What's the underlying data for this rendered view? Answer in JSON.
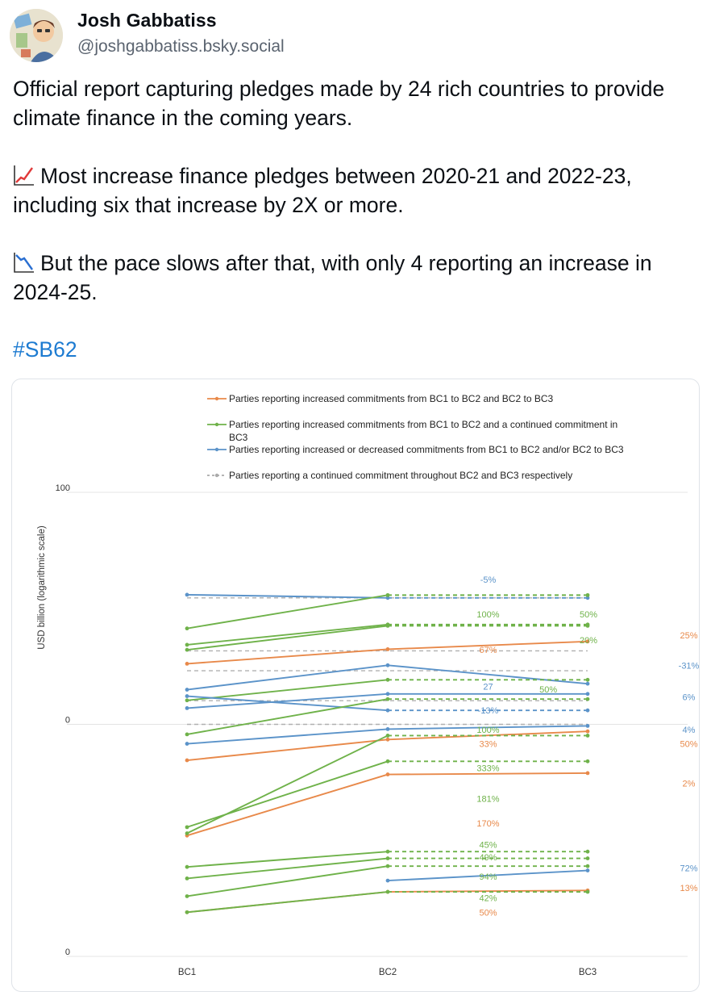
{
  "post": {
    "author_name": "Josh Gabbatiss",
    "author_handle": "@joshgabbatiss.bsky.social",
    "paragraphs": [
      "Official report capturing pledges made by 24 rich countries to provide climate finance in the coming years.",
      "Most increase finance pledges between 2020-21 and 2022-23, including six that increase by 2X or more.",
      "But the pace slows after that, with only 4 reporting an increase in 2024-25."
    ],
    "hashtag": "#SB62",
    "icons": [
      "chart-increasing-icon",
      "chart-decreasing-icon"
    ]
  },
  "chart_data": {
    "type": "line",
    "title": "",
    "ylabel": "USD billion (logarithmic scale)",
    "xlabel": "",
    "categories": [
      "BC1",
      "BC2",
      "BC3"
    ],
    "y_tick_labels": [
      "100",
      "0",
      "0"
    ],
    "yscale": "log",
    "ylim": [
      0.01,
      100
    ],
    "legend": [
      {
        "text": "Parties reporting increased commitments from BC1 to BC2 and BC2 to BC3",
        "color": "#e8894a",
        "style": "solid"
      },
      {
        "text": "Parties reporting increased commitments from BC1 to BC2 and a continued commitment in BC3",
        "color": "#6fb24a",
        "style": "solid"
      },
      {
        "text": "Parties reporting increased or decreased commitments from BC1 to BC2 and/or BC2 to BC3",
        "color": "#5b93c9",
        "style": "solid"
      },
      {
        "text": "Parties reporting a continued commitment throughout BC2 and BC3 respectively",
        "color": "#aaaaaa",
        "style": "dashed"
      }
    ],
    "colors": {
      "orange": "#e8894a",
      "green": "#6fb24a",
      "blue": "#5b93c9",
      "grey": "#b0b0b0"
    },
    "series": [
      {
        "color": "blue",
        "values": [
          13.1,
          12.3,
          12.3
        ],
        "dashed": [
          false,
          true
        ]
      },
      {
        "color": "green",
        "values": [
          6.71,
          13.0,
          13.0
        ],
        "dashed": [
          false,
          true
        ]
      },
      {
        "color": "green",
        "values": [
          4.85,
          7.25,
          7.25
        ],
        "dashed": [
          false,
          true
        ]
      },
      {
        "color": "green",
        "values": [
          4.39,
          7.07,
          7.07
        ],
        "dashed": [
          false,
          true
        ]
      },
      {
        "color": "orange",
        "values": [
          3.33,
          4.44,
          5.18
        ],
        "dashed": [
          false,
          false
        ]
      },
      {
        "color": "blue",
        "values": [
          1.99,
          3.23,
          2.24
        ],
        "dashed": [
          false,
          false
        ]
      },
      {
        "color": "green",
        "values": [
          1.61,
          2.42,
          2.42
        ],
        "dashed": [
          false,
          true
        ]
      },
      {
        "color": "blue",
        "values": [
          1.38,
          1.83,
          1.83
        ],
        "dashed": [
          false,
          false
        ]
      },
      {
        "color": "blue",
        "values": [
          1.75,
          1.32,
          1.32
        ],
        "dashed": [
          false,
          true
        ]
      },
      {
        "color": "green",
        "values": [
          0.82,
          1.65,
          1.65
        ],
        "dashed": [
          false,
          true
        ]
      },
      {
        "color": "blue",
        "values": [
          0.68,
          0.91,
          0.97
        ],
        "dashed": [
          false,
          false
        ]
      },
      {
        "color": "orange",
        "values": [
          0.49,
          0.74,
          0.87
        ],
        "dashed": [
          false,
          false
        ]
      },
      {
        "color": "green",
        "values": [
          0.13,
          0.48,
          0.48
        ],
        "dashed": [
          false,
          true
        ]
      },
      {
        "color": "orange",
        "values": [
          0.11,
          0.37,
          0.38
        ],
        "dashed": [
          false,
          false
        ]
      },
      {
        "color": "green",
        "values": [
          0.115,
          0.8,
          0.8
        ],
        "dashed": [
          false,
          true
        ]
      },
      {
        "color": "green",
        "values": [
          0.059,
          0.08,
          0.08
        ],
        "dashed": [
          false,
          true
        ]
      },
      {
        "color": "green",
        "values": [
          0.047,
          0.07,
          0.07
        ],
        "dashed": [
          false,
          true
        ]
      },
      {
        "color": "green",
        "values": [
          0.033,
          0.06,
          0.06
        ],
        "dashed": [
          false,
          true
        ]
      },
      {
        "color": "blue",
        "values": [
          null,
          0.045,
          0.055
        ],
        "dashed": [
          false,
          false
        ]
      },
      {
        "color": "orange",
        "values": [
          0.024,
          0.036,
          0.037
        ],
        "dashed": [
          false,
          false
        ]
      },
      {
        "color": "green",
        "values": [
          0.024,
          0.036,
          0.036
        ],
        "dashed": [
          false,
          true
        ]
      }
    ],
    "grey_reference_lines": [
      12.3,
      4.3,
      2.9,
      1.6,
      1.0
    ],
    "annotations": [
      {
        "text": "-5%",
        "color": "blue",
        "at": [
          1.5,
          17.7
        ]
      },
      {
        "text": "100%",
        "color": "green",
        "at": [
          1.5,
          8.93
        ]
      },
      {
        "text": "50%",
        "color": "green",
        "at": [
          2.0,
          8.93
        ]
      },
      {
        "text": "20%",
        "color": "green",
        "at": [
          2.0,
          5.35
        ]
      },
      {
        "text": "67%",
        "color": "orange",
        "at": [
          1.5,
          4.41
        ]
      },
      {
        "text": "25%",
        "color": "orange",
        "at": [
          2.5,
          5.89
        ]
      },
      {
        "text": "-31%",
        "color": "blue",
        "at": [
          2.5,
          3.22
        ]
      },
      {
        "text": "27",
        "color": "blue",
        "at": [
          1.5,
          2.12
        ]
      },
      {
        "text": "50%",
        "color": "green",
        "at": [
          1.8,
          2.0
        ]
      },
      {
        "text": "6%",
        "color": "blue",
        "at": [
          2.5,
          1.72
        ]
      },
      {
        "text": "-13%",
        "color": "blue",
        "at": [
          1.5,
          1.32
        ]
      },
      {
        "text": "100%",
        "color": "green",
        "at": [
          1.5,
          0.9
        ]
      },
      {
        "text": "4%",
        "color": "blue",
        "at": [
          2.5,
          0.9
        ]
      },
      {
        "text": "33%",
        "color": "orange",
        "at": [
          1.5,
          0.68
        ]
      },
      {
        "text": "50%",
        "color": "orange",
        "at": [
          2.5,
          0.68
        ]
      },
      {
        "text": "333%",
        "color": "green",
        "at": [
          1.5,
          0.42
        ]
      },
      {
        "text": "2%",
        "color": "orange",
        "at": [
          2.5,
          0.31
        ]
      },
      {
        "text": "181%",
        "color": "green",
        "at": [
          1.5,
          0.23
        ]
      },
      {
        "text": "170%",
        "color": "orange",
        "at": [
          1.5,
          0.14
        ]
      },
      {
        "text": "45%",
        "color": "green",
        "at": [
          1.5,
          0.092
        ]
      },
      {
        "text": "49%",
        "color": "green",
        "at": [
          1.5,
          0.072
        ]
      },
      {
        "text": "94%",
        "color": "green",
        "at": [
          1.5,
          0.049
        ]
      },
      {
        "text": "72%",
        "color": "blue",
        "at": [
          2.5,
          0.058
        ]
      },
      {
        "text": "42%",
        "color": "green",
        "at": [
          1.5,
          0.032
        ]
      },
      {
        "text": "13%",
        "color": "orange",
        "at": [
          2.5,
          0.039
        ]
      },
      {
        "text": "50%",
        "color": "orange",
        "at": [
          1.5,
          0.024
        ]
      }
    ]
  }
}
